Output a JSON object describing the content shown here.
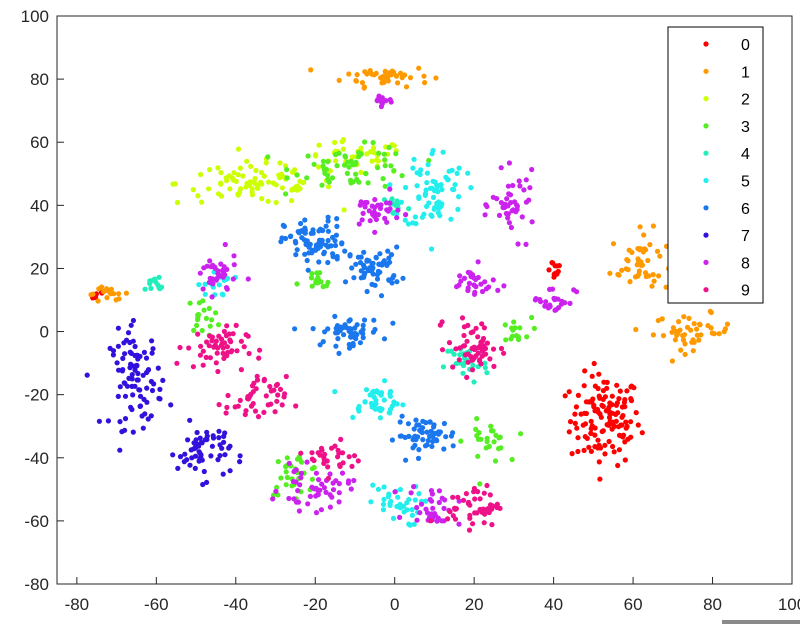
{
  "chart_data": {
    "type": "scatter",
    "title": "",
    "xlabel": "",
    "ylabel": "",
    "xlim": [
      -85,
      100
    ],
    "ylim": [
      -80,
      100
    ],
    "x_ticks": [
      -80,
      -60,
      -40,
      -20,
      0,
      20,
      40,
      60,
      80,
      100
    ],
    "y_ticks": [
      -80,
      -60,
      -40,
      -20,
      0,
      20,
      40,
      60,
      80,
      100
    ],
    "x_tick_labels": [
      "-80",
      "-60",
      "-40",
      "-20",
      "0",
      "20",
      "40",
      "60",
      "80",
      "100"
    ],
    "y_tick_labels": [
      "-80",
      "-60",
      "-40",
      "-20",
      "0",
      "20",
      "40",
      "60",
      "80",
      "100"
    ],
    "grid": false,
    "legend_position": "top-right",
    "series": [
      {
        "name": "0",
        "color": "#ff0000",
        "clusters": [
          {
            "center": [
              53,
              -28
            ],
            "spread": [
              8,
              13
            ],
            "points": 130
          },
          {
            "center": [
              40,
              20
            ],
            "spread": [
              2,
              3
            ],
            "points": 12
          },
          {
            "center": [
              -75,
              12
            ],
            "spread": [
              2,
              2
            ],
            "points": 6
          }
        ]
      },
      {
        "name": "1",
        "color": "#ff9900",
        "clusters": [
          {
            "center": [
              -2,
              81
            ],
            "spread": [
              10,
              3
            ],
            "points": 45
          },
          {
            "center": [
              62,
              22
            ],
            "spread": [
              7,
              9
            ],
            "points": 50
          },
          {
            "center": [
              75,
              0
            ],
            "spread": [
              9,
              5
            ],
            "points": 45
          },
          {
            "center": [
              -72,
              12
            ],
            "spread": [
              5,
              2
            ],
            "points": 18
          }
        ]
      },
      {
        "name": "2",
        "color": "#ccff00",
        "clusters": [
          {
            "center": [
              -35,
              47
            ],
            "spread": [
              18,
              6
            ],
            "points": 85
          },
          {
            "center": [
              -10,
              55
            ],
            "spread": [
              12,
              5
            ],
            "points": 40
          }
        ]
      },
      {
        "name": "3",
        "color": "#55ee22",
        "clusters": [
          {
            "center": [
              -10,
              52
            ],
            "spread": [
              14,
              6
            ],
            "points": 60
          },
          {
            "center": [
              -25,
              -45
            ],
            "spread": [
              6,
              6
            ],
            "points": 30
          },
          {
            "center": [
              23,
              -35
            ],
            "spread": [
              5,
              6
            ],
            "points": 25
          },
          {
            "center": [
              -48,
              5
            ],
            "spread": [
              4,
              5
            ],
            "points": 18
          },
          {
            "center": [
              30,
              0
            ],
            "spread": [
              4,
              4
            ],
            "points": 15
          },
          {
            "center": [
              -20,
              15
            ],
            "spread": [
              4,
              4
            ],
            "points": 15
          }
        ]
      },
      {
        "name": "4",
        "color": "#22eebb",
        "clusters": [
          {
            "center": [
              18,
              -10
            ],
            "spread": [
              5,
              6
            ],
            "points": 30
          },
          {
            "center": [
              -60,
              15
            ],
            "spread": [
              3,
              3
            ],
            "points": 12
          },
          {
            "center": [
              0,
              40
            ],
            "spread": [
              3,
              3
            ],
            "points": 12
          }
        ]
      },
      {
        "name": "5",
        "color": "#22eeee",
        "clusters": [
          {
            "center": [
              10,
              45
            ],
            "spread": [
              7,
              12
            ],
            "points": 70
          },
          {
            "center": [
              -5,
              -22
            ],
            "spread": [
              7,
              5
            ],
            "points": 40
          },
          {
            "center": [
              0,
              -55
            ],
            "spread": [
              6,
              6
            ],
            "points": 35
          },
          {
            "center": [
              -45,
              15
            ],
            "spread": [
              4,
              4
            ],
            "points": 15
          }
        ]
      },
      {
        "name": "6",
        "color": "#1a77ee",
        "clusters": [
          {
            "center": [
              -20,
              28
            ],
            "spread": [
              7,
              7
            ],
            "points": 80
          },
          {
            "center": [
              -5,
              20
            ],
            "spread": [
              6,
              6
            ],
            "points": 60
          },
          {
            "center": [
              -12,
              0
            ],
            "spread": [
              8,
              4
            ],
            "points": 55
          },
          {
            "center": [
              8,
              -33
            ],
            "spread": [
              7,
              5
            ],
            "points": 55
          }
        ]
      },
      {
        "name": "7",
        "color": "#3311dd",
        "clusters": [
          {
            "center": [
              -65,
              -15
            ],
            "spread": [
              6,
              14
            ],
            "points": 90
          },
          {
            "center": [
              -48,
              -38
            ],
            "spread": [
              6,
              8
            ],
            "points": 60
          }
        ]
      },
      {
        "name": "8",
        "color": "#cc22ee",
        "clusters": [
          {
            "center": [
              -5,
              38
            ],
            "spread": [
              6,
              5
            ],
            "points": 35
          },
          {
            "center": [
              30,
              40
            ],
            "spread": [
              5,
              9
            ],
            "points": 45
          },
          {
            "center": [
              -45,
              18
            ],
            "spread": [
              5,
              6
            ],
            "points": 35
          },
          {
            "center": [
              20,
              15
            ],
            "spread": [
              6,
              5
            ],
            "points": 30
          },
          {
            "center": [
              -20,
              -50
            ],
            "spread": [
              8,
              6
            ],
            "points": 50
          },
          {
            "center": [
              10,
              -55
            ],
            "spread": [
              6,
              6
            ],
            "points": 35
          },
          {
            "center": [
              40,
              10
            ],
            "spread": [
              5,
              4
            ],
            "points": 25
          },
          {
            "center": [
              -3,
              73
            ],
            "spread": [
              3,
              2
            ],
            "points": 10
          }
        ]
      },
      {
        "name": "9",
        "color": "#ee1188",
        "clusters": [
          {
            "center": [
              -45,
              -5
            ],
            "spread": [
              7,
              6
            ],
            "points": 55
          },
          {
            "center": [
              -35,
              -22
            ],
            "spread": [
              7,
              7
            ],
            "points": 45
          },
          {
            "center": [
              20,
              -5
            ],
            "spread": [
              6,
              8
            ],
            "points": 55
          },
          {
            "center": [
              20,
              -55
            ],
            "spread": [
              6,
              6
            ],
            "points": 45
          },
          {
            "center": [
              -15,
              -40
            ],
            "spread": [
              6,
              5
            ],
            "points": 30
          }
        ]
      }
    ]
  }
}
